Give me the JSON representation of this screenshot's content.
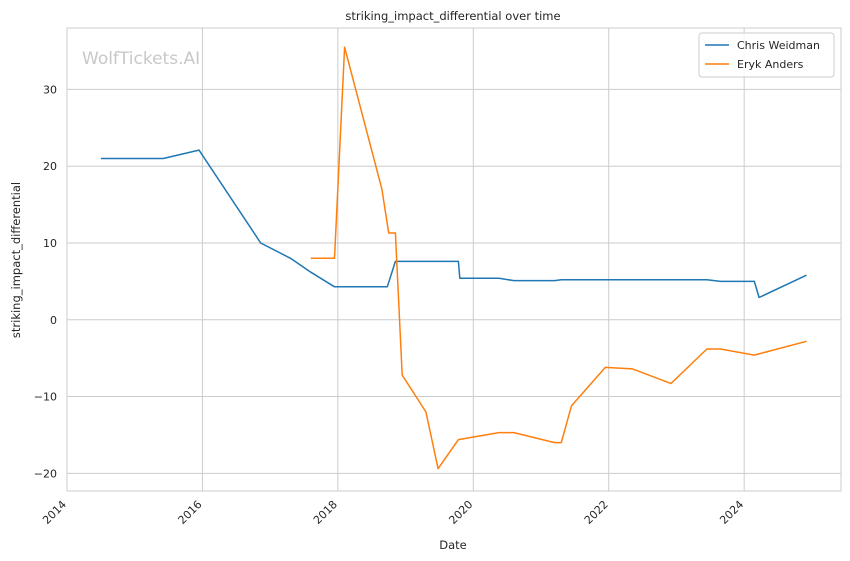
{
  "chart_data": {
    "type": "line",
    "title": "striking_impact_differential over time",
    "xlabel": "Date",
    "ylabel": "striking_impact_differential",
    "watermark": "WolfTickets.AI",
    "x_ticks": [
      "2014",
      "2016",
      "2018",
      "2020",
      "2022",
      "2024"
    ],
    "y_ticks": [
      "−20",
      "−10",
      "0",
      "10",
      "20",
      "30"
    ],
    "xlim": [
      2014.0,
      2025.43
    ],
    "ylim": [
      -22.3,
      38.0
    ],
    "grid": true,
    "legend_position": "top-right",
    "series": [
      {
        "name": "Chris Weidman",
        "color": "#1f77b4",
        "x": [
          2014.5,
          2015.42,
          2015.95,
          2016.86,
          2017.3,
          2017.6,
          2017.95,
          2018.73,
          2018.85,
          2019.78,
          2019.8,
          2020.38,
          2020.6,
          2021.2,
          2021.3,
          2023.45,
          2023.65,
          2024.15,
          2024.22,
          2024.92
        ],
        "y": [
          21.0,
          21.0,
          22.1,
          10.0,
          8.0,
          6.2,
          4.3,
          4.3,
          7.6,
          7.6,
          5.4,
          5.4,
          5.1,
          5.1,
          5.2,
          5.2,
          5.0,
          5.0,
          2.9,
          5.8
        ]
      },
      {
        "name": "Eryk Anders",
        "color": "#ff7f0e",
        "x": [
          2017.6,
          2017.95,
          2018.1,
          2018.65,
          2018.75,
          2018.85,
          2018.95,
          2019.3,
          2019.48,
          2019.78,
          2020.38,
          2020.6,
          2021.2,
          2021.3,
          2021.45,
          2021.95,
          2022.35,
          2022.92,
          2023.45,
          2023.65,
          2024.15,
          2024.92
        ],
        "y": [
          8.0,
          8.0,
          35.5,
          17.0,
          11.3,
          11.3,
          -7.2,
          -12.0,
          -19.4,
          -15.6,
          -14.7,
          -14.7,
          -16.0,
          -16.0,
          -11.2,
          -6.2,
          -6.4,
          -8.3,
          -3.8,
          -3.8,
          -4.6,
          -2.8
        ]
      }
    ]
  }
}
